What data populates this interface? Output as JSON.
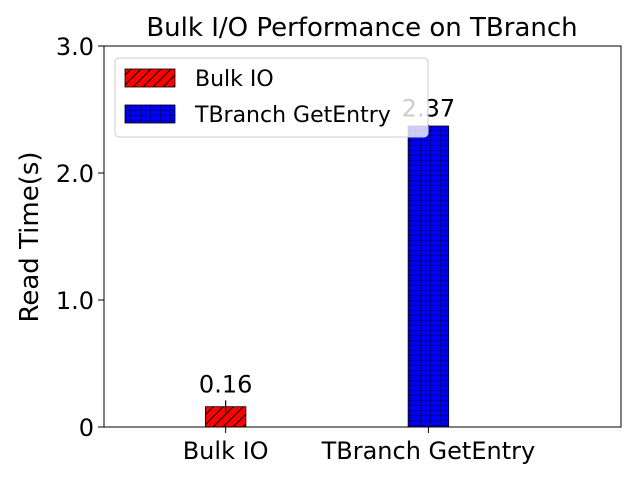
{
  "chart_data": {
    "type": "bar",
    "title": "Bulk I/O Performance on TBranch",
    "xlabel": "",
    "ylabel": "Read Time(s)",
    "ylim": [
      0,
      3.0
    ],
    "yticks": [
      {
        "value": 0,
        "label": "0"
      },
      {
        "value": 1.0,
        "label": "1.0"
      },
      {
        "value": 2.0,
        "label": "2.0"
      },
      {
        "value": 3.0,
        "label": "3.0"
      }
    ],
    "categories": [
      "Bulk IO",
      "TBranch GetEntry"
    ],
    "values": [
      0.16,
      2.37
    ],
    "value_labels": [
      "0.16",
      "2.37"
    ],
    "error_bars": [
      0.05,
      0.01
    ],
    "colors": [
      "#ff0000",
      "#0000ff"
    ],
    "hatches": [
      "diagonal",
      "grid"
    ],
    "legend": {
      "position": "upper-left",
      "entries": [
        "Bulk IO",
        "TBranch GetEntry"
      ]
    },
    "grid": false
  }
}
